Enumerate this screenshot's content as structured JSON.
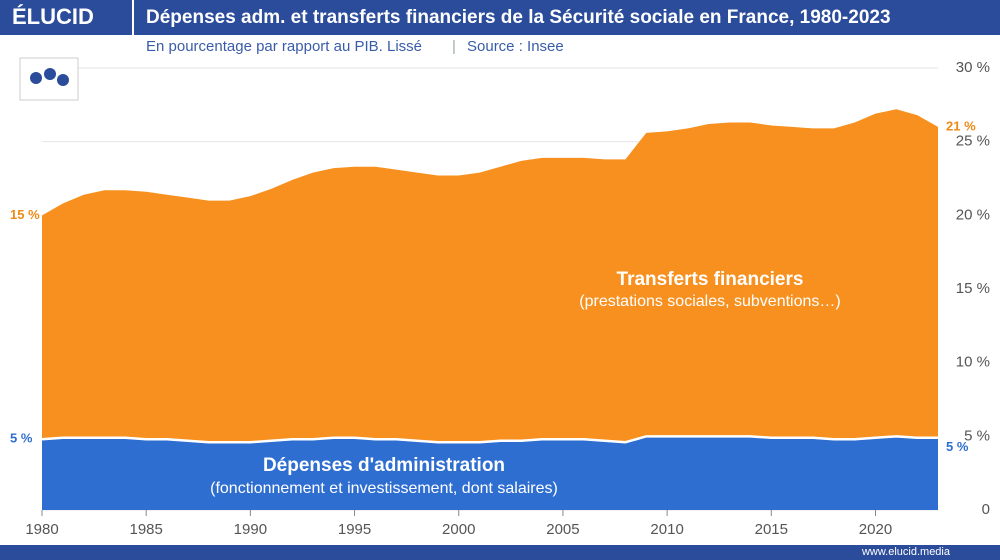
{
  "brand": "ÉLUCID",
  "footer": "www.elucid.media",
  "chart_data": {
    "type": "stacked-area",
    "title": "Dépenses adm. et transferts financiers de la Sécurité sociale en France, 1980-2023",
    "subtitle": "En pourcentage par rapport au PIB. Lissé",
    "source": "Source : Insee",
    "x": [
      1980,
      1981,
      1982,
      1983,
      1984,
      1985,
      1986,
      1987,
      1988,
      1989,
      1990,
      1991,
      1992,
      1993,
      1994,
      1995,
      1996,
      1997,
      1998,
      1999,
      2000,
      2001,
      2002,
      2003,
      2004,
      2005,
      2006,
      2007,
      2008,
      2009,
      2010,
      2011,
      2012,
      2013,
      2014,
      2015,
      2016,
      2017,
      2018,
      2019,
      2020,
      2021,
      2022,
      2023
    ],
    "xlim": [
      1980,
      2023
    ],
    "xticks": [
      1980,
      1985,
      1990,
      1995,
      2000,
      2005,
      2010,
      2015,
      2020
    ],
    "ylim": [
      0,
      30
    ],
    "yticks": [
      0,
      {
        "value": 5,
        "label": "5 %"
      },
      {
        "value": 10,
        "label": "10 %"
      },
      {
        "value": 15,
        "label": "15 %"
      },
      {
        "value": 20,
        "label": "20 %"
      },
      {
        "value": 25,
        "label": "25 %"
      },
      {
        "value": 30,
        "label": "30 %"
      }
    ],
    "grid": true,
    "series": [
      {
        "name": "Dépenses d'administration",
        "sublabel": "(fonctionnement et investissement, dont salaires)",
        "color": "#2f6ed1",
        "label_color": "#2f6ed1",
        "values": [
          4.8,
          4.9,
          4.9,
          4.9,
          4.9,
          4.8,
          4.8,
          4.7,
          4.6,
          4.6,
          4.6,
          4.7,
          4.8,
          4.8,
          4.9,
          4.9,
          4.8,
          4.8,
          4.7,
          4.6,
          4.6,
          4.6,
          4.7,
          4.7,
          4.8,
          4.8,
          4.8,
          4.7,
          4.6,
          5.0,
          5.0,
          5.0,
          5.0,
          5.0,
          5.0,
          4.9,
          4.9,
          4.9,
          4.8,
          4.8,
          4.9,
          5.0,
          4.9,
          4.9
        ],
        "value_labels": [
          "5 %",
          null,
          null,
          null,
          null,
          null,
          null,
          null,
          null,
          null,
          null,
          null,
          null,
          null,
          null,
          null,
          null,
          null,
          null,
          null,
          null,
          null,
          null,
          null,
          null,
          null,
          null,
          null,
          null,
          null,
          null,
          null,
          null,
          null,
          null,
          null,
          null,
          null,
          null,
          null,
          null,
          null,
          null,
          "5 %"
        ]
      },
      {
        "name": "Transferts financiers",
        "sublabel": "(prestations sociales, subventions…)",
        "color": "#f7901e",
        "label_color": "#f08a14",
        "values": [
          15.2,
          15.9,
          16.5,
          16.8,
          16.8,
          16.8,
          16.6,
          16.5,
          16.4,
          16.4,
          16.7,
          17.1,
          17.6,
          18.1,
          18.3,
          18.4,
          18.5,
          18.3,
          18.2,
          18.1,
          18.1,
          18.3,
          18.6,
          19.0,
          19.1,
          19.1,
          19.1,
          19.1,
          19.2,
          20.6,
          20.7,
          20.9,
          21.2,
          21.3,
          21.3,
          21.2,
          21.1,
          21.0,
          21.1,
          21.5,
          22.0,
          22.2,
          21.9,
          21.1
        ],
        "value_labels": [
          "15 %",
          null,
          null,
          null,
          null,
          null,
          null,
          null,
          null,
          null,
          null,
          null,
          null,
          null,
          null,
          null,
          null,
          null,
          null,
          null,
          null,
          null,
          null,
          null,
          null,
          null,
          null,
          null,
          null,
          null,
          null,
          null,
          null,
          null,
          null,
          null,
          null,
          null,
          null,
          null,
          null,
          null,
          null,
          "21 %"
        ]
      }
    ]
  }
}
